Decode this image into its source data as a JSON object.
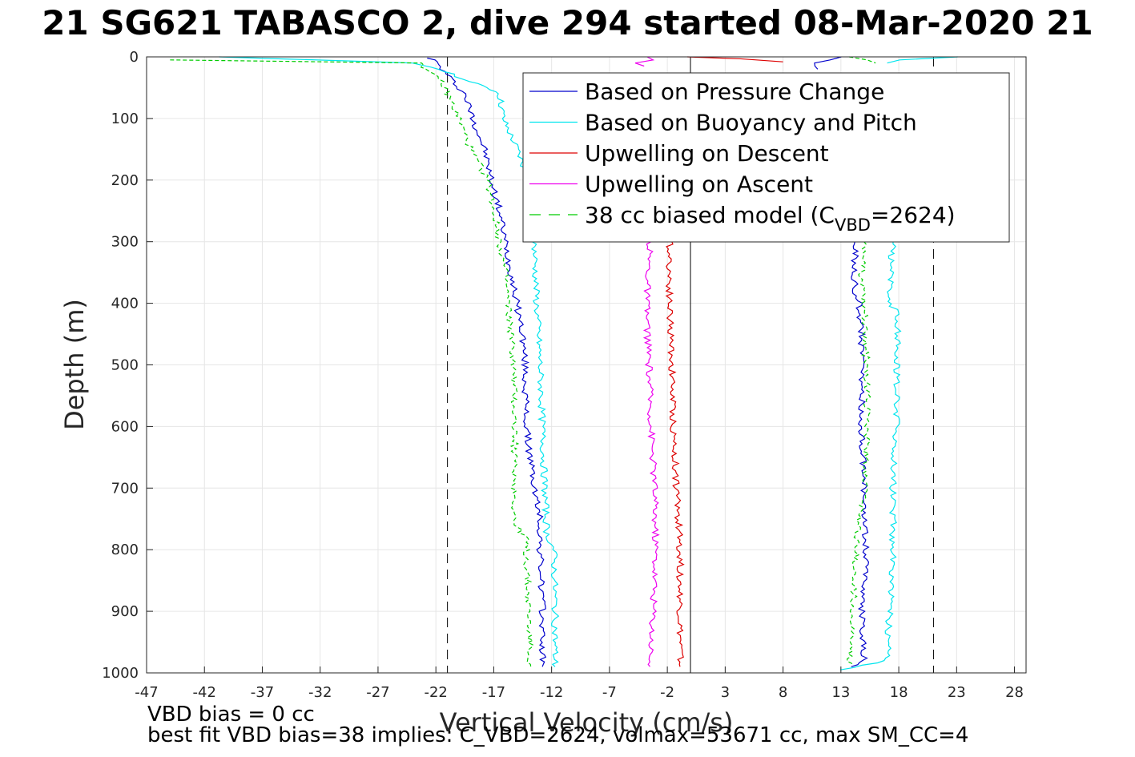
{
  "title": "21 SG621 TABASCO 2, dive 294 started 08-Mar-2020 21",
  "notes": {
    "line1": "VBD bias = 0 cc",
    "line2": "best fit VBD bias=38 implies: C_VBD=2624, volmax=53671 cc, max SM_CC=4"
  },
  "chart_data": {
    "type": "line",
    "xlabel": "Vertical Velocity (cm/s)",
    "ylabel": "Depth (m)",
    "xlim": [
      -47,
      29
    ],
    "ylim": [
      0,
      1000
    ],
    "y_reversed": true,
    "xticks": [
      -47,
      -42,
      -37,
      -32,
      -27,
      -22,
      -17,
      -12,
      -7,
      -2,
      3,
      8,
      13,
      18,
      23,
      28
    ],
    "yticks": [
      0,
      100,
      200,
      300,
      400,
      500,
      600,
      700,
      800,
      900,
      1000
    ],
    "grid": true,
    "legend_position": "top-right",
    "reference_lines": [
      {
        "x": -21,
        "style": "dashed",
        "color": "#000000"
      },
      {
        "x": 0,
        "style": "solid",
        "color": "#000000"
      },
      {
        "x": 21,
        "style": "dashed",
        "color": "#000000"
      }
    ],
    "series": [
      {
        "name": "Based on Pressure Change",
        "color": "#0000cc",
        "dash": false,
        "segments": [
          {
            "depth": [
              2,
              8,
              20,
              40,
              60,
              100,
              150,
              200,
              250,
              300,
              350,
              400,
              450,
              500,
              600,
              700,
              750,
              800,
              900,
              990
            ],
            "velocity": [
              -22.5,
              -22,
              -21.5,
              -20.5,
              -19.5,
              -18.8,
              -17.8,
              -17.2,
              -16.5,
              -16,
              -15.5,
              -15,
              -14.5,
              -14.3,
              -14.2,
              -13.5,
              -13,
              -13,
              -12.8,
              -12.8
            ]
          },
          {
            "depth": [
              990,
              980,
              900,
              800,
              700,
              600,
              500,
              450,
              400,
              380,
              350,
              300
            ],
            "velocity": [
              14,
              15,
              14.8,
              15.2,
              15,
              14.8,
              14.8,
              14.8,
              14.6,
              14.2,
              14.2,
              14.2
            ]
          },
          {
            "depth": [
              0,
              5,
              10,
              15,
              20
            ],
            "velocity": [
              13,
              12,
              11,
              10.5,
              11
            ]
          }
        ]
      },
      {
        "name": "Based on Buoyancy and Pitch",
        "color": "#00e5ee",
        "dash": false,
        "segments": [
          {
            "depth": [
              0,
              10,
              20,
              40,
              50,
              60,
              100,
              150,
              200,
              210
            ],
            "velocity": [
              -41,
              -24,
              -21.5,
              -19.2,
              -17.5,
              -16.5,
              -16.2,
              -15,
              -14,
              -13.8
            ]
          },
          {
            "depth": [
              300,
              400,
              500,
              600,
              700,
              775,
              800,
              900,
              990
            ],
            "velocity": [
              -13.5,
              -13.3,
              -13,
              -12.8,
              -12.6,
              -12.4,
              -11.8,
              -11.7,
              -11.7
            ]
          },
          {
            "depth": [
              995,
              980,
              900,
              800,
              700,
              600,
              500,
              410,
              405,
              350,
              300
            ],
            "velocity": [
              13,
              17,
              17.2,
              17.5,
              17.5,
              17.8,
              17.8,
              18,
              17.2,
              17.3,
              17.5
            ]
          },
          {
            "depth": [
              0,
              5,
              10
            ],
            "velocity": [
              23,
              18,
              17
            ]
          }
        ]
      },
      {
        "name": "Upwelling on Descent",
        "color": "#dd0000",
        "dash": false,
        "segments": [
          {
            "depth": [
              300,
              400,
              500,
              600,
              700,
              800,
              900,
              990
            ],
            "velocity": [
              -1.8,
              -1.8,
              -1.6,
              -1.5,
              -1.2,
              -0.9,
              -0.9,
              -0.9
            ]
          },
          {
            "depth": [
              0,
              3,
              8
            ],
            "velocity": [
              0,
              4,
              8
            ]
          }
        ]
      },
      {
        "name": "Upwelling on Ascent",
        "color": "#ee00ee",
        "dash": false,
        "segments": [
          {
            "depth": [
              300,
              400,
              500,
              600,
              700,
              800,
              900,
              990
            ],
            "velocity": [
              -3.5,
              -3.8,
              -3.6,
              -3.4,
              -3.1,
              -3,
              -3.2,
              -3.5
            ]
          },
          {
            "depth": [
              0,
              5,
              10,
              15
            ],
            "velocity": [
              -4,
              -3.5,
              -5,
              -4
            ]
          }
        ]
      },
      {
        "name": "38 cc biased model (C_VBD=2624)",
        "legend_main": "38 cc biased model (C",
        "legend_sub": "VBD",
        "legend_tail": "=2624)",
        "color": "#00cc00",
        "dash": true,
        "segments": [
          {
            "depth": [
              5,
              10,
              20,
              40,
              100,
              150,
              200,
              250,
              300,
              350,
              400,
              450,
              500,
              600,
              700,
              760,
              780,
              800,
              900,
              990
            ],
            "velocity": [
              -45,
              -23,
              -23,
              -21.5,
              -20,
              -19,
              -17.5,
              -17,
              -16.5,
              -16,
              -15.8,
              -15.5,
              -15.3,
              -15.2,
              -15.2,
              -15.2,
              -14.2,
              -14.2,
              -14,
              -13.8
            ]
          },
          {
            "depth": [
              985,
              900,
              800,
              700,
              600,
              500,
              400,
              350,
              300
            ],
            "velocity": [
              13.8,
              14.1,
              14.3,
              15,
              15.3,
              15.2,
              15,
              14.8,
              15
            ]
          },
          {
            "depth": [
              0,
              5,
              10
            ],
            "velocity": [
              14,
              15,
              16
            ]
          }
        ]
      }
    ]
  }
}
